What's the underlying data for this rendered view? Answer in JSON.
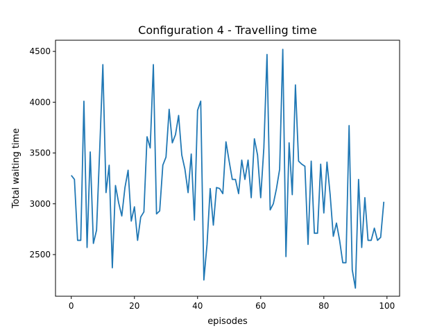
{
  "chart_data": {
    "type": "line",
    "title": "Configuration 4 - Travelling time",
    "xlabel": "episodes",
    "ylabel": "Total waiting time",
    "xlim": [
      -5,
      104
    ],
    "ylim": [
      2090,
      4610
    ],
    "xticks": [
      0,
      20,
      40,
      60,
      80,
      100
    ],
    "yticks": [
      2500,
      3000,
      3500,
      4000,
      4500
    ],
    "grid": false,
    "line_color": "#1f77b4",
    "series": [
      {
        "x": [
          0,
          1,
          2,
          3,
          4,
          5,
          6,
          7,
          8,
          9,
          10,
          11,
          12,
          13,
          14,
          15,
          16,
          17,
          18,
          19,
          20,
          21,
          22,
          23,
          24,
          25,
          26,
          27,
          28,
          29,
          30,
          31,
          32,
          33,
          34,
          35,
          36,
          37,
          38,
          39,
          40,
          41,
          42,
          43,
          44,
          45,
          46,
          47,
          48,
          49,
          50,
          51,
          52,
          53,
          54,
          55,
          56,
          57,
          58,
          59,
          60,
          61,
          62,
          63,
          64,
          65,
          66,
          67,
          68,
          69,
          70,
          71,
          72,
          73,
          74,
          75,
          76,
          77,
          78,
          79,
          80,
          81,
          82,
          83,
          84,
          85,
          86,
          87,
          88,
          89,
          90,
          91,
          92,
          93,
          94,
          95,
          96,
          97,
          98,
          99
        ],
        "y": [
          3280,
          3240,
          2640,
          2640,
          4010,
          2570,
          3510,
          2610,
          2740,
          3530,
          4370,
          3110,
          3380,
          2370,
          3180,
          3010,
          2880,
          3160,
          3330,
          2830,
          2970,
          2640,
          2870,
          2920,
          3660,
          3550,
          4370,
          2900,
          2930,
          3380,
          3460,
          3930,
          3600,
          3680,
          3870,
          3480,
          3340,
          3110,
          3490,
          2840,
          3920,
          4010,
          2250,
          2600,
          3150,
          2790,
          3160,
          3150,
          3100,
          3610,
          3420,
          3240,
          3240,
          3100,
          3430,
          3240,
          3430,
          3060,
          3640,
          3480,
          3060,
          3550,
          4470,
          2940,
          3000,
          3150,
          3340,
          4520,
          2480,
          3600,
          3090,
          4170,
          3420,
          3390,
          3370,
          2600,
          3420,
          2710,
          2710,
          3390,
          2910,
          3410,
          3090,
          2680,
          2810,
          2640,
          2420,
          2420,
          3770,
          2350,
          2170,
          3240,
          2570,
          3060,
          2640,
          2640,
          2760,
          2640,
          2670,
          3020
        ]
      }
    ]
  }
}
